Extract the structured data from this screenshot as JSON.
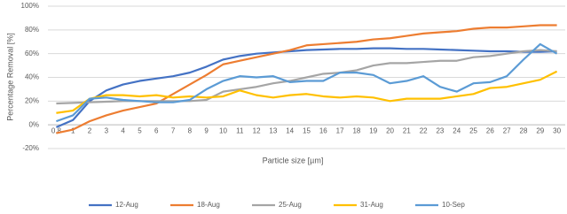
{
  "chart_data": {
    "type": "line",
    "x_label": "Particle size [µm]",
    "y_label": "Percentage Removal [%]",
    "categories": [
      "0.8",
      "1",
      "2",
      "3",
      "4",
      "5",
      "6",
      "7",
      "8",
      "9",
      "10",
      "11",
      "12",
      "13",
      "14",
      "15",
      "16",
      "17",
      "18",
      "19",
      "20",
      "21",
      "22",
      "23",
      "24",
      "25",
      "26",
      "27",
      "28",
      "29",
      "30"
    ],
    "ylim": [
      -20,
      100
    ],
    "yticks": [
      {
        "value": -20,
        "label": "-20%"
      },
      {
        "value": 0,
        "label": "0%"
      },
      {
        "value": 20,
        "label": "20%"
      },
      {
        "value": 40,
        "label": "40%"
      },
      {
        "value": 60,
        "label": "60%"
      },
      {
        "value": 80,
        "label": "80%"
      },
      {
        "value": 100,
        "label": "100%"
      }
    ],
    "grid": true,
    "legend": "bottom",
    "series": [
      {
        "name": "12-Aug",
        "color": "#4472c4",
        "values": [
          -2,
          4,
          20,
          29,
          34,
          37,
          39,
          41,
          44,
          49,
          55,
          58,
          60,
          61,
          62,
          63,
          63.5,
          64,
          64,
          64.5,
          64.5,
          64,
          64,
          63.5,
          63,
          62.5,
          62,
          62,
          61.5,
          61.5,
          62
        ]
      },
      {
        "name": "18-Aug",
        "color": "#ed7d31",
        "values": [
          -7,
          -4,
          3,
          8,
          12,
          15,
          18,
          26,
          34,
          42,
          51,
          54,
          57,
          60,
          63,
          67,
          68,
          69,
          70,
          72,
          73,
          75,
          77,
          78,
          79,
          81,
          82,
          82,
          83,
          84,
          84
        ]
      },
      {
        "name": "25-Aug",
        "color": "#a5a5a5",
        "values": [
          18,
          18.5,
          19,
          19.5,
          20,
          20,
          20,
          20,
          20,
          21,
          28,
          30,
          32,
          35,
          37,
          40,
          43,
          44,
          46,
          50,
          52,
          52,
          53,
          54,
          54,
          57,
          58,
          60,
          62,
          63,
          62
        ]
      },
      {
        "name": "31-Aug",
        "color": "#ffc000",
        "values": [
          10,
          12,
          22,
          25,
          25,
          24,
          25,
          23,
          24,
          23,
          24,
          29,
          25,
          23,
          25,
          26,
          24,
          23,
          24,
          23,
          20,
          22,
          22,
          22,
          24,
          26,
          31,
          32,
          35,
          38,
          45
        ]
      },
      {
        "name": "10-Sep",
        "color": "#5b9bd5",
        "values": [
          3,
          8,
          22,
          23,
          21,
          20,
          19,
          19,
          21,
          30,
          37,
          41,
          40,
          41,
          36,
          37,
          37,
          44,
          44,
          42,
          35,
          37,
          41,
          32,
          28,
          35,
          36,
          41,
          55,
          68,
          60
        ]
      }
    ]
  }
}
